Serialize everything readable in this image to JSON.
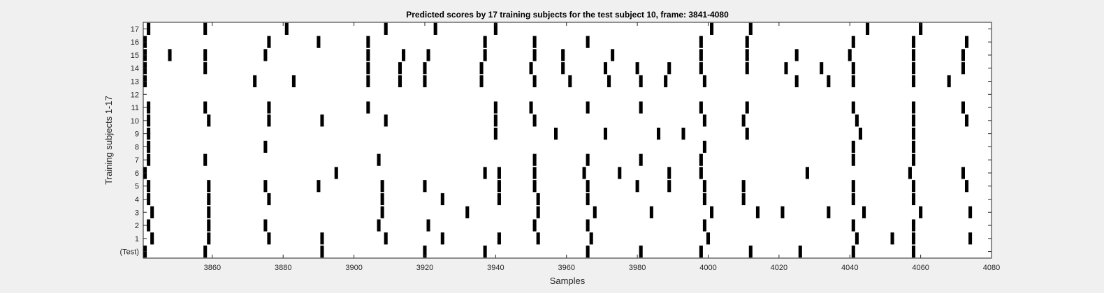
{
  "chart_data": {
    "type": "heatmap",
    "title": "Predicted scores by 17 training subjects for the test subject 10, frame: 3841-4080",
    "xlabel": "Samples",
    "ylabel": "Training subjects 1-17",
    "xlim": [
      3841,
      4080
    ],
    "xticks": [
      3860,
      3880,
      3900,
      3920,
      3940,
      3960,
      3980,
      4000,
      4020,
      4040,
      4060,
      4080
    ],
    "ytick_labels": [
      "(Test)",
      "1",
      "2",
      "3",
      "4",
      "5",
      "6",
      "7",
      "8",
      "9",
      "10",
      "11",
      "12",
      "13",
      "14",
      "15",
      "16",
      "17"
    ],
    "grid": false,
    "colors": {
      "mark": "#000000",
      "background": "#ffffff",
      "figure": "#f0f0f0"
    },
    "rows": [
      {
        "label": "(Test)",
        "x": [
          3841,
          3858,
          3891,
          3920,
          3937,
          3966,
          3981,
          3998,
          4012,
          4026,
          4041,
          4058
        ]
      },
      {
        "label": "1",
        "x": [
          3843,
          3859,
          3876,
          3891,
          3909,
          3925,
          3941,
          3952,
          3967,
          4000,
          4042,
          4052,
          4058,
          4074
        ]
      },
      {
        "label": "2",
        "x": [
          3842,
          3859,
          3875,
          3907,
          3921,
          3951,
          3966,
          3999,
          4041,
          4058
        ]
      },
      {
        "label": "3",
        "x": [
          3843,
          3859,
          3908,
          3932,
          3952,
          3968,
          3984,
          4001,
          4014,
          4021,
          4034,
          4044,
          4060,
          4074
        ]
      },
      {
        "label": "4",
        "x": [
          3842,
          3859,
          3876,
          3908,
          3925,
          3941,
          3952,
          3966,
          3999,
          4010,
          4041,
          4058
        ]
      },
      {
        "label": "5",
        "x": [
          3842,
          3859,
          3875,
          3890,
          3908,
          3920,
          3941,
          3951,
          3966,
          3980,
          3989,
          3999,
          4010,
          4041,
          4058,
          4073
        ]
      },
      {
        "label": "6",
        "x": [
          3841,
          3941,
          3895,
          3937,
          3951,
          3965,
          3975,
          3989,
          3998,
          4028,
          4057,
          4072
        ]
      },
      {
        "label": "7",
        "x": [
          3842,
          3858,
          3907,
          3951,
          3966,
          3981,
          3998,
          4041,
          4058
        ]
      },
      {
        "label": "8",
        "x": [
          3842,
          3875,
          3999,
          4041,
          4058
        ]
      },
      {
        "label": "9",
        "x": [
          3842,
          3940,
          3957,
          3971,
          3986,
          3993,
          4011,
          4043,
          4058
        ]
      },
      {
        "label": "10",
        "x": [
          3842,
          3859,
          3876,
          3891,
          3909,
          3940,
          3951,
          3999,
          4010,
          4042,
          4058,
          4073
        ]
      },
      {
        "label": "11",
        "x": [
          3842,
          3858,
          3876,
          3904,
          3940,
          3950,
          3966,
          3981,
          3998,
          4011,
          4041,
          4058,
          4072
        ]
      },
      {
        "label": "12",
        "x": []
      },
      {
        "label": "13",
        "x": [
          3841,
          3872,
          3883,
          3904,
          3913,
          3920,
          3936,
          3951,
          3961,
          3972,
          3981,
          3988,
          3999,
          4025,
          4034,
          4041,
          4058,
          4068
        ]
      },
      {
        "label": "14",
        "x": [
          3841,
          3858,
          3904,
          3913,
          3920,
          3936,
          3950,
          3959,
          3971,
          3980,
          3989,
          3998,
          4011,
          4022,
          4032,
          4041,
          4058,
          4072
        ]
      },
      {
        "label": "15",
        "x": [
          3841,
          3848,
          3858,
          3875,
          3904,
          3914,
          3921,
          3937,
          3951,
          3959,
          3973,
          3998,
          4011,
          4025,
          4040,
          4058,
          4072
        ]
      },
      {
        "label": "16",
        "x": [
          3841,
          3876,
          3890,
          3904,
          3937,
          3951,
          3966,
          3998,
          4011,
          4041,
          4058,
          4073
        ]
      },
      {
        "label": "17",
        "x": [
          3842,
          3858,
          3881,
          3909,
          3923,
          3940,
          4001,
          4012,
          4045,
          4060
        ]
      }
    ]
  }
}
